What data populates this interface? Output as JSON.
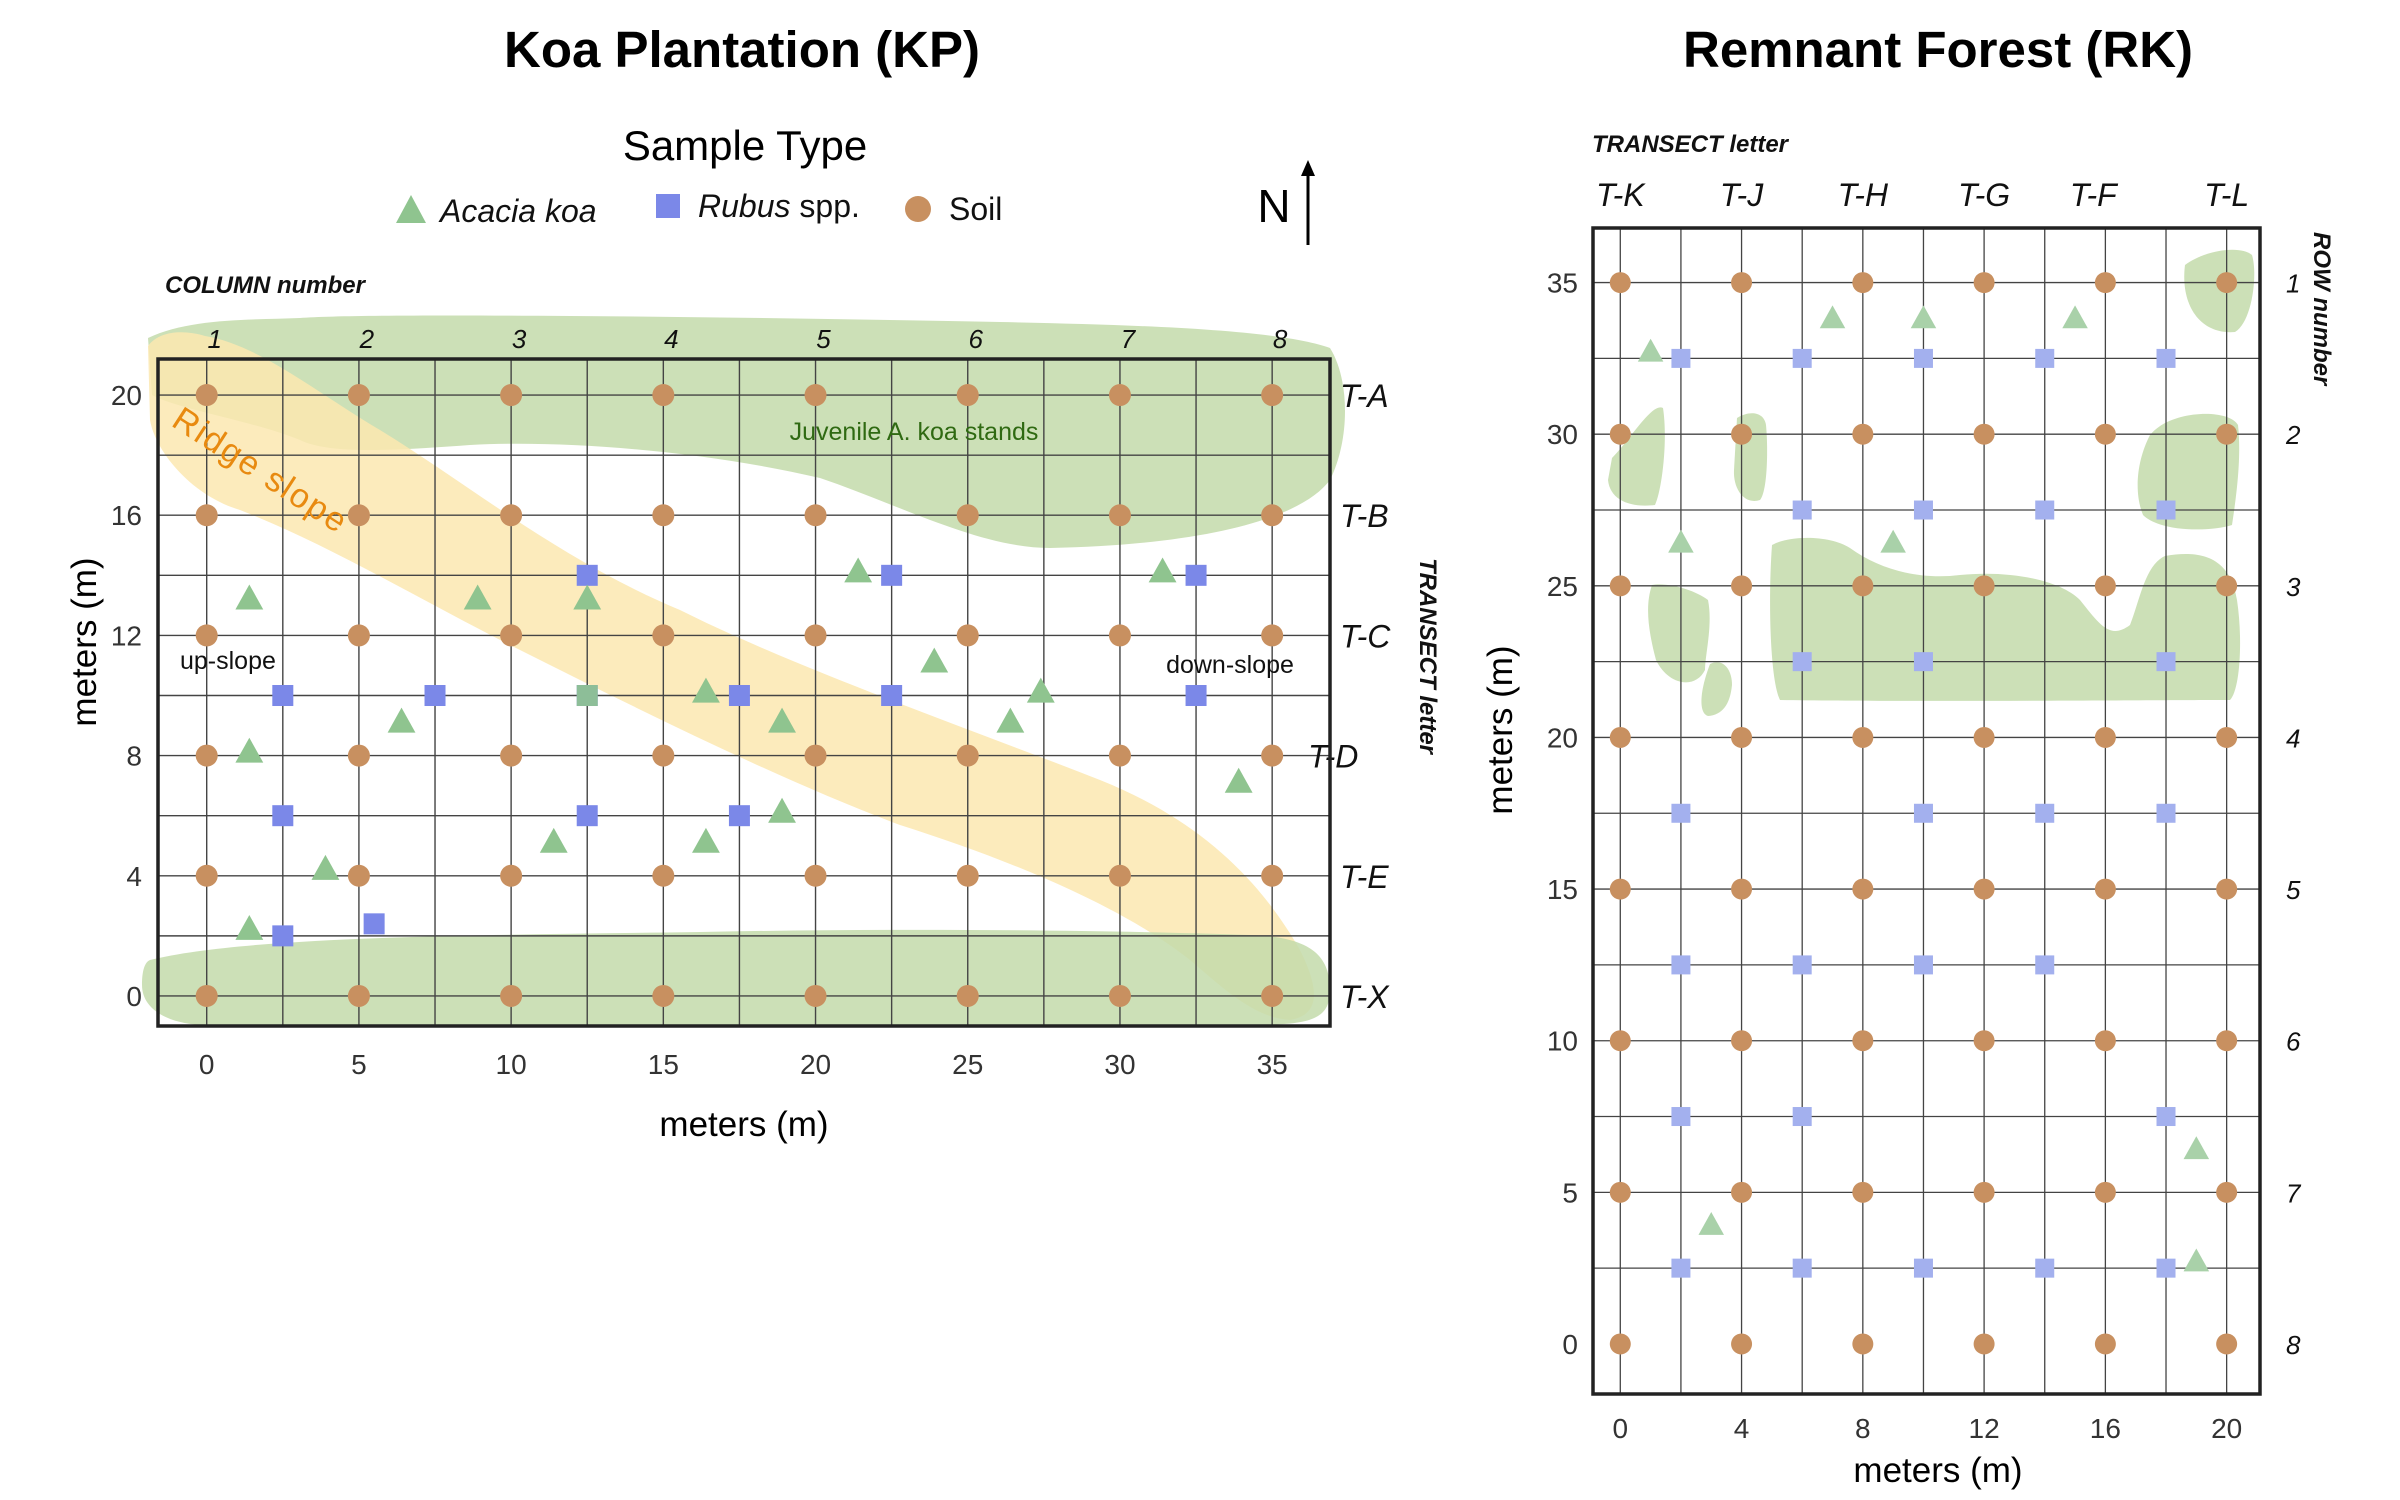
{
  "colors": {
    "acacia": "#8fc48f",
    "acacia_light": "#a9d1a9",
    "rubus": "#7b88e8",
    "rubus_light": "#a3b0ee",
    "soil": "#c89060",
    "soil_edge": "#a97543",
    "stand_green": "#c3dbaa",
    "ridge_yellow": "#fbe8b0",
    "ridge_text": "#e88a10",
    "stand_text": "#2f6a12",
    "grid": "#444444",
    "frame": "#222222"
  },
  "legend": {
    "title": "Sample Type",
    "items": [
      {
        "key": "acacia",
        "label": "Acacia koa",
        "label_style": "italic",
        "icon": "triangle-icon"
      },
      {
        "key": "rubus",
        "label": "Rubus",
        "suffix": " spp.",
        "icon": "square-icon"
      },
      {
        "key": "soil",
        "label": "Soil",
        "icon": "circle-icon"
      }
    ]
  },
  "compass": {
    "label": "N",
    "icon": "north-arrow-icon"
  },
  "chart_data": [
    {
      "type": "scatter",
      "title": "Koa Plantation (KP)",
      "xlabel": "meters (m)",
      "ylabel": "meters (m)",
      "xlim": [
        -1.6,
        36.9
      ],
      "ylim": [
        -1,
        21.2
      ],
      "xticks": [
        0,
        5,
        10,
        15,
        20,
        25,
        30,
        35
      ],
      "yticks": [
        0,
        4,
        8,
        12,
        16,
        20
      ],
      "grid_x": [
        0,
        2.5,
        5,
        7.5,
        10,
        12.5,
        15,
        17.5,
        20,
        22.5,
        25,
        27.5,
        30,
        32.5,
        35
      ],
      "grid_y": [
        0,
        2,
        4,
        6,
        8,
        10,
        12,
        14,
        16,
        18,
        20
      ],
      "column_header": "COLUMN number",
      "columns": [
        {
          "label": "1",
          "x": 0
        },
        {
          "label": "2",
          "x": 5
        },
        {
          "label": "3",
          "x": 10
        },
        {
          "label": "4",
          "x": 15
        },
        {
          "label": "5",
          "x": 20
        },
        {
          "label": "6",
          "x": 25
        },
        {
          "label": "7",
          "x": 30
        },
        {
          "label": "8",
          "x": 35
        }
      ],
      "transect_header": "TRANSECT letter",
      "transects": [
        {
          "label": "T-A",
          "y": 20
        },
        {
          "label": "T-B",
          "y": 16
        },
        {
          "label": "T-C",
          "y": 12
        },
        {
          "label": "T-D",
          "y": 8
        },
        {
          "label": "T-E",
          "y": 4
        },
        {
          "label": "T-X",
          "y": 0
        }
      ],
      "annotations": [
        {
          "text": "Juvenile A. koa stands",
          "x": 23.5,
          "y": 18.3,
          "style": "stand"
        },
        {
          "text": "Ridge slope",
          "x": 2.5,
          "y": 17.5,
          "style": "ridge"
        },
        {
          "text": "up-slope",
          "x": 0.8,
          "y": 11.0,
          "style": "note"
        },
        {
          "text": "down-slope",
          "x": 33.5,
          "y": 10.9,
          "style": "note"
        }
      ],
      "series": [
        {
          "name": "Soil",
          "kind": "soil",
          "points": [
            [
              0,
              20
            ],
            [
              5,
              20
            ],
            [
              10,
              20
            ],
            [
              15,
              20
            ],
            [
              20,
              20
            ],
            [
              25,
              20
            ],
            [
              30,
              20
            ],
            [
              35,
              20
            ],
            [
              0,
              16
            ],
            [
              5,
              16
            ],
            [
              10,
              16
            ],
            [
              15,
              16
            ],
            [
              20,
              16
            ],
            [
              25,
              16
            ],
            [
              30,
              16
            ],
            [
              35,
              16
            ],
            [
              0,
              12
            ],
            [
              5,
              12
            ],
            [
              10,
              12
            ],
            [
              15,
              12
            ],
            [
              20,
              12
            ],
            [
              25,
              12
            ],
            [
              30,
              12
            ],
            [
              35,
              12
            ],
            [
              0,
              8
            ],
            [
              5,
              8
            ],
            [
              10,
              8
            ],
            [
              15,
              8
            ],
            [
              20,
              8
            ],
            [
              25,
              8
            ],
            [
              30,
              8
            ],
            [
              35,
              8
            ],
            [
              0,
              4
            ],
            [
              5,
              4
            ],
            [
              10,
              4
            ],
            [
              15,
              4
            ],
            [
              20,
              4
            ],
            [
              25,
              4
            ],
            [
              30,
              4
            ],
            [
              35,
              4
            ],
            [
              0,
              0
            ],
            [
              5,
              0
            ],
            [
              10,
              0
            ],
            [
              15,
              0
            ],
            [
              20,
              0
            ],
            [
              25,
              0
            ],
            [
              30,
              0
            ],
            [
              35,
              0
            ]
          ]
        },
        {
          "name": "Rubus spp.",
          "kind": "rubus",
          "points": [
            [
              12.5,
              14
            ],
            [
              22.5,
              14
            ],
            [
              32.5,
              14
            ],
            [
              2.5,
              10
            ],
            [
              7.5,
              10
            ],
            [
              12.5,
              10
            ],
            [
              17.5,
              10
            ],
            [
              22.5,
              10
            ],
            [
              32.5,
              10
            ],
            [
              2.5,
              6
            ],
            [
              12.5,
              6
            ],
            [
              17.5,
              6
            ],
            [
              2.5,
              2
            ],
            [
              5.5,
              2.4
            ]
          ]
        },
        {
          "name": "Acacia koa",
          "kind": "acacia",
          "points": [
            [
              1.4,
              13.2
            ],
            [
              8.9,
              13.2
            ],
            [
              12.5,
              13.2
            ],
            [
              21.4,
              14.1
            ],
            [
              31.4,
              14.1
            ],
            [
              23.9,
              11.1
            ],
            [
              16.4,
              10.1
            ],
            [
              27.4,
              10.1
            ],
            [
              6.4,
              9.1
            ],
            [
              18.9,
              9.1
            ],
            [
              26.4,
              9.1
            ],
            [
              1.4,
              8.1
            ],
            [
              33.9,
              7.1
            ],
            [
              18.9,
              6.1
            ],
            [
              11.4,
              5.1
            ],
            [
              16.4,
              5.1
            ],
            [
              3.9,
              4.2
            ],
            [
              1.4,
              2.2
            ]
          ]
        }
      ],
      "overlap_point": [
        12.5,
        10
      ]
    },
    {
      "type": "scatter",
      "title": "Remnant Forest (RK)",
      "xlabel": "meters (m)",
      "ylabel": "meters (m)",
      "xlim": [
        -0.9,
        21.1
      ],
      "ylim": [
        -1.65,
        36.8
      ],
      "xticks": [
        0,
        4,
        8,
        12,
        16,
        20
      ],
      "yticks": [
        0,
        5,
        10,
        15,
        20,
        25,
        30,
        35
      ],
      "grid_x": [
        0,
        2,
        4,
        6,
        8,
        10,
        12,
        14,
        16,
        18,
        20
      ],
      "grid_y": [
        2.5,
        7.5,
        10,
        12.5,
        17.5,
        20,
        22.5,
        27.5,
        30,
        32.5,
        35
      ],
      "grid_y_tight": [
        5,
        15,
        25
      ],
      "transect_header": "TRANSECT letter",
      "transects": [
        {
          "label": "T-K",
          "x": 0
        },
        {
          "label": "T-J",
          "x": 4
        },
        {
          "label": "T-H",
          "x": 8
        },
        {
          "label": "T-G",
          "x": 12
        },
        {
          "label": "T-F",
          "x": 15.6
        },
        {
          "label": "T-L",
          "x": 20
        }
      ],
      "row_header": "ROW number",
      "rows": [
        {
          "label": "1",
          "y": 35
        },
        {
          "label": "2",
          "y": 30
        },
        {
          "label": "3",
          "y": 25
        },
        {
          "label": "4",
          "y": 20
        },
        {
          "label": "5",
          "y": 15
        },
        {
          "label": "6",
          "y": 10
        },
        {
          "label": "7",
          "y": 5
        },
        {
          "label": "8",
          "y": 0
        }
      ],
      "series": [
        {
          "name": "Soil",
          "kind": "soil",
          "points": [
            [
              0,
              35
            ],
            [
              4,
              35
            ],
            [
              8,
              35
            ],
            [
              12,
              35
            ],
            [
              16,
              35
            ],
            [
              20,
              35
            ],
            [
              0,
              30
            ],
            [
              4,
              30
            ],
            [
              8,
              30
            ],
            [
              12,
              30
            ],
            [
              16,
              30
            ],
            [
              20,
              30
            ],
            [
              0,
              25
            ],
            [
              4,
              25
            ],
            [
              8,
              25
            ],
            [
              12,
              25
            ],
            [
              16,
              25
            ],
            [
              20,
              25
            ],
            [
              0,
              20
            ],
            [
              4,
              20
            ],
            [
              8,
              20
            ],
            [
              12,
              20
            ],
            [
              16,
              20
            ],
            [
              20,
              20
            ],
            [
              0,
              15
            ],
            [
              4,
              15
            ],
            [
              8,
              15
            ],
            [
              12,
              15
            ],
            [
              16,
              15
            ],
            [
              20,
              15
            ],
            [
              0,
              10
            ],
            [
              4,
              10
            ],
            [
              8,
              10
            ],
            [
              12,
              10
            ],
            [
              16,
              10
            ],
            [
              20,
              10
            ],
            [
              0,
              5
            ],
            [
              4,
              5
            ],
            [
              8,
              5
            ],
            [
              12,
              5
            ],
            [
              16,
              5
            ],
            [
              20,
              5
            ],
            [
              0,
              0
            ],
            [
              4,
              0
            ],
            [
              8,
              0
            ],
            [
              12,
              0
            ],
            [
              16,
              0
            ],
            [
              20,
              0
            ]
          ]
        },
        {
          "name": "Rubus spp.",
          "kind": "rubus",
          "points": [
            [
              2,
              32.5
            ],
            [
              6,
              32.5
            ],
            [
              10,
              32.5
            ],
            [
              14,
              32.5
            ],
            [
              18,
              32.5
            ],
            [
              6,
              27.5
            ],
            [
              10,
              27.5
            ],
            [
              14,
              27.5
            ],
            [
              18,
              27.5
            ],
            [
              6,
              22.5
            ],
            [
              10,
              22.5
            ],
            [
              18,
              22.5
            ],
            [
              2,
              17.5
            ],
            [
              10,
              17.5
            ],
            [
              14,
              17.5
            ],
            [
              18,
              17.5
            ],
            [
              2,
              12.5
            ],
            [
              6,
              12.5
            ],
            [
              10,
              12.5
            ],
            [
              14,
              12.5
            ],
            [
              2,
              7.5
            ],
            [
              6,
              7.5
            ],
            [
              18,
              7.5
            ],
            [
              2,
              2.5
            ],
            [
              6,
              2.5
            ],
            [
              10,
              2.5
            ],
            [
              14,
              2.5
            ],
            [
              18,
              2.5
            ]
          ]
        },
        {
          "name": "Acacia koa",
          "kind": "acacia",
          "points": [
            [
              1,
              32.7
            ],
            [
              7,
              33.8
            ],
            [
              10,
              33.8
            ],
            [
              15,
              33.8
            ],
            [
              2,
              26.4
            ],
            [
              9,
              26.4
            ],
            [
              19,
              6.4
            ],
            [
              3,
              3.9
            ],
            [
              19,
              2.7
            ]
          ]
        }
      ]
    }
  ]
}
